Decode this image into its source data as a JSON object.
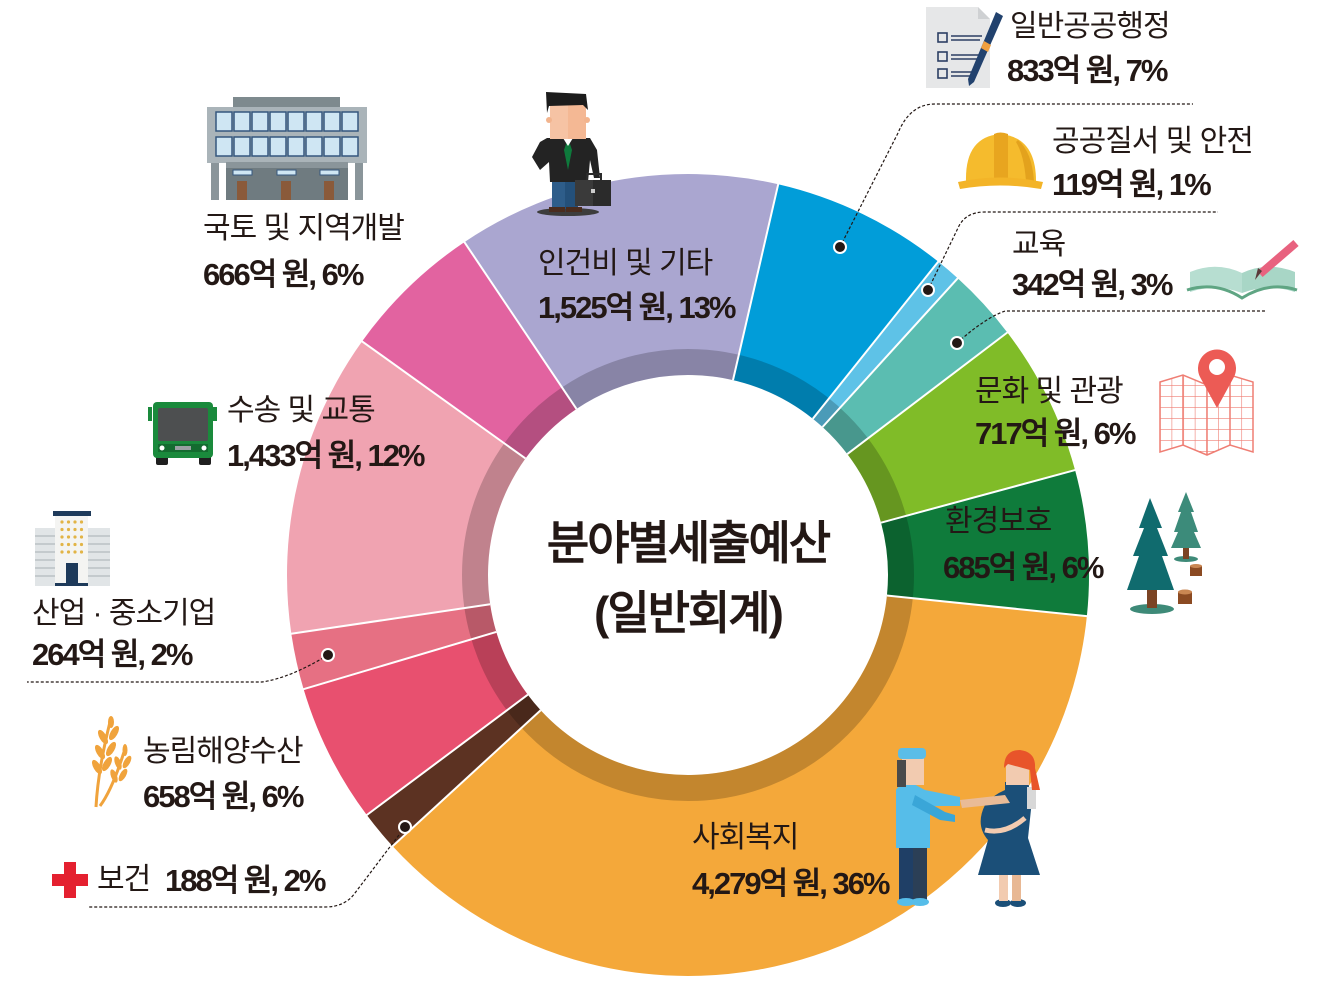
{
  "title": {
    "main": "분야별세출예산",
    "sub": "(일반회계)"
  },
  "segments": [
    {
      "name": "일반공공행정",
      "value_label": "833억 원, 7%",
      "icon": "document-pen-icon"
    },
    {
      "name": "공공질서 및 안전",
      "value_label": "119억 원, 1%",
      "icon": "hard-hat-icon"
    },
    {
      "name": "교육",
      "value_label": "342억 원, 3%",
      "icon": "book-pencil-icon"
    },
    {
      "name": "문화 및 관광",
      "value_label": "717억 원, 6%",
      "icon": "map-pin-icon"
    },
    {
      "name": "환경보호",
      "value_label": "685억 원, 6%",
      "icon": "trees-icon"
    },
    {
      "name": "사회복지",
      "value_label": "4,279억 원, 36%",
      "icon": "nurse-and-pregnant-woman-icon"
    },
    {
      "name": "보건",
      "value_label": "188억 원, 2%",
      "icon": "red-cross-icon"
    },
    {
      "name": "농림해양수산",
      "value_label": "658억 원, 6%",
      "icon": "wheat-icon"
    },
    {
      "name": "산업 · 중소기업",
      "value_label": "264억 원, 2%",
      "icon": "tall-building-icon"
    },
    {
      "name": "수송 및 교통",
      "value_label": "1,433억 원, 12%",
      "icon": "bus-icon"
    },
    {
      "name": "국토 및 지역개발",
      "value_label": "666억 원, 6%",
      "icon": "office-building-icon"
    },
    {
      "name": "인건비 및 기타",
      "value_label": "1,525억 원, 13%",
      "icon": "businessman-icon"
    }
  ],
  "chart_data": {
    "type": "pie",
    "variant": "donut",
    "title": "분야별세출예산 (일반회계)",
    "unit": "억 원",
    "categories": [
      "일반공공행정",
      "공공질서 및 안전",
      "교육",
      "문화 및 관광",
      "환경보호",
      "사회복지",
      "보건",
      "농림해양수산",
      "산업 · 중소기업",
      "수송 및 교통",
      "국토 및 지역개발",
      "인건비 및 기타"
    ],
    "values": [
      833,
      119,
      342,
      717,
      685,
      4279,
      188,
      658,
      264,
      1433,
      666,
      1525
    ],
    "percentages": [
      7,
      1,
      3,
      6,
      6,
      36,
      2,
      6,
      2,
      12,
      6,
      13
    ],
    "colors": [
      "#019dd9",
      "#5ec2e7",
      "#5bbdb1",
      "#80bc28",
      "#0f7b3b",
      "#f4a83a",
      "#5c3222",
      "#e8506f",
      "#e67083",
      "#f0a3b1",
      "#e263a0",
      "#aaa6d0"
    ],
    "start_angle_deg": 13,
    "direction": "clockwise",
    "legend": "none (direct labels)"
  }
}
